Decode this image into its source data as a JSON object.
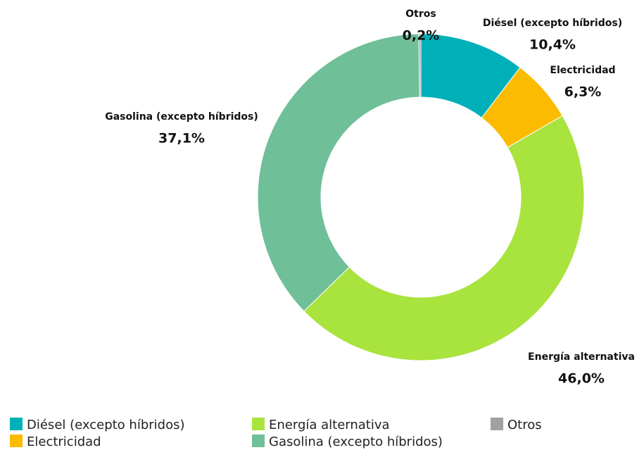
{
  "chart_data": {
    "type": "donut",
    "categories": [
      "Diésel (excepto híbridos)",
      "Electricidad",
      "Energía alternativa",
      "Gasolina (excepto híbridos)",
      "Otros"
    ],
    "values": [
      10.4,
      6.3,
      46.0,
      37.1,
      0.2
    ],
    "value_labels": [
      "10,4%",
      "6,3%",
      "46,0%",
      "37,1%",
      "0,2%"
    ],
    "colors": [
      "#00b0b9",
      "#fbbb00",
      "#a9e33e",
      "#6fbf98",
      "#a0a0a0"
    ]
  }
}
